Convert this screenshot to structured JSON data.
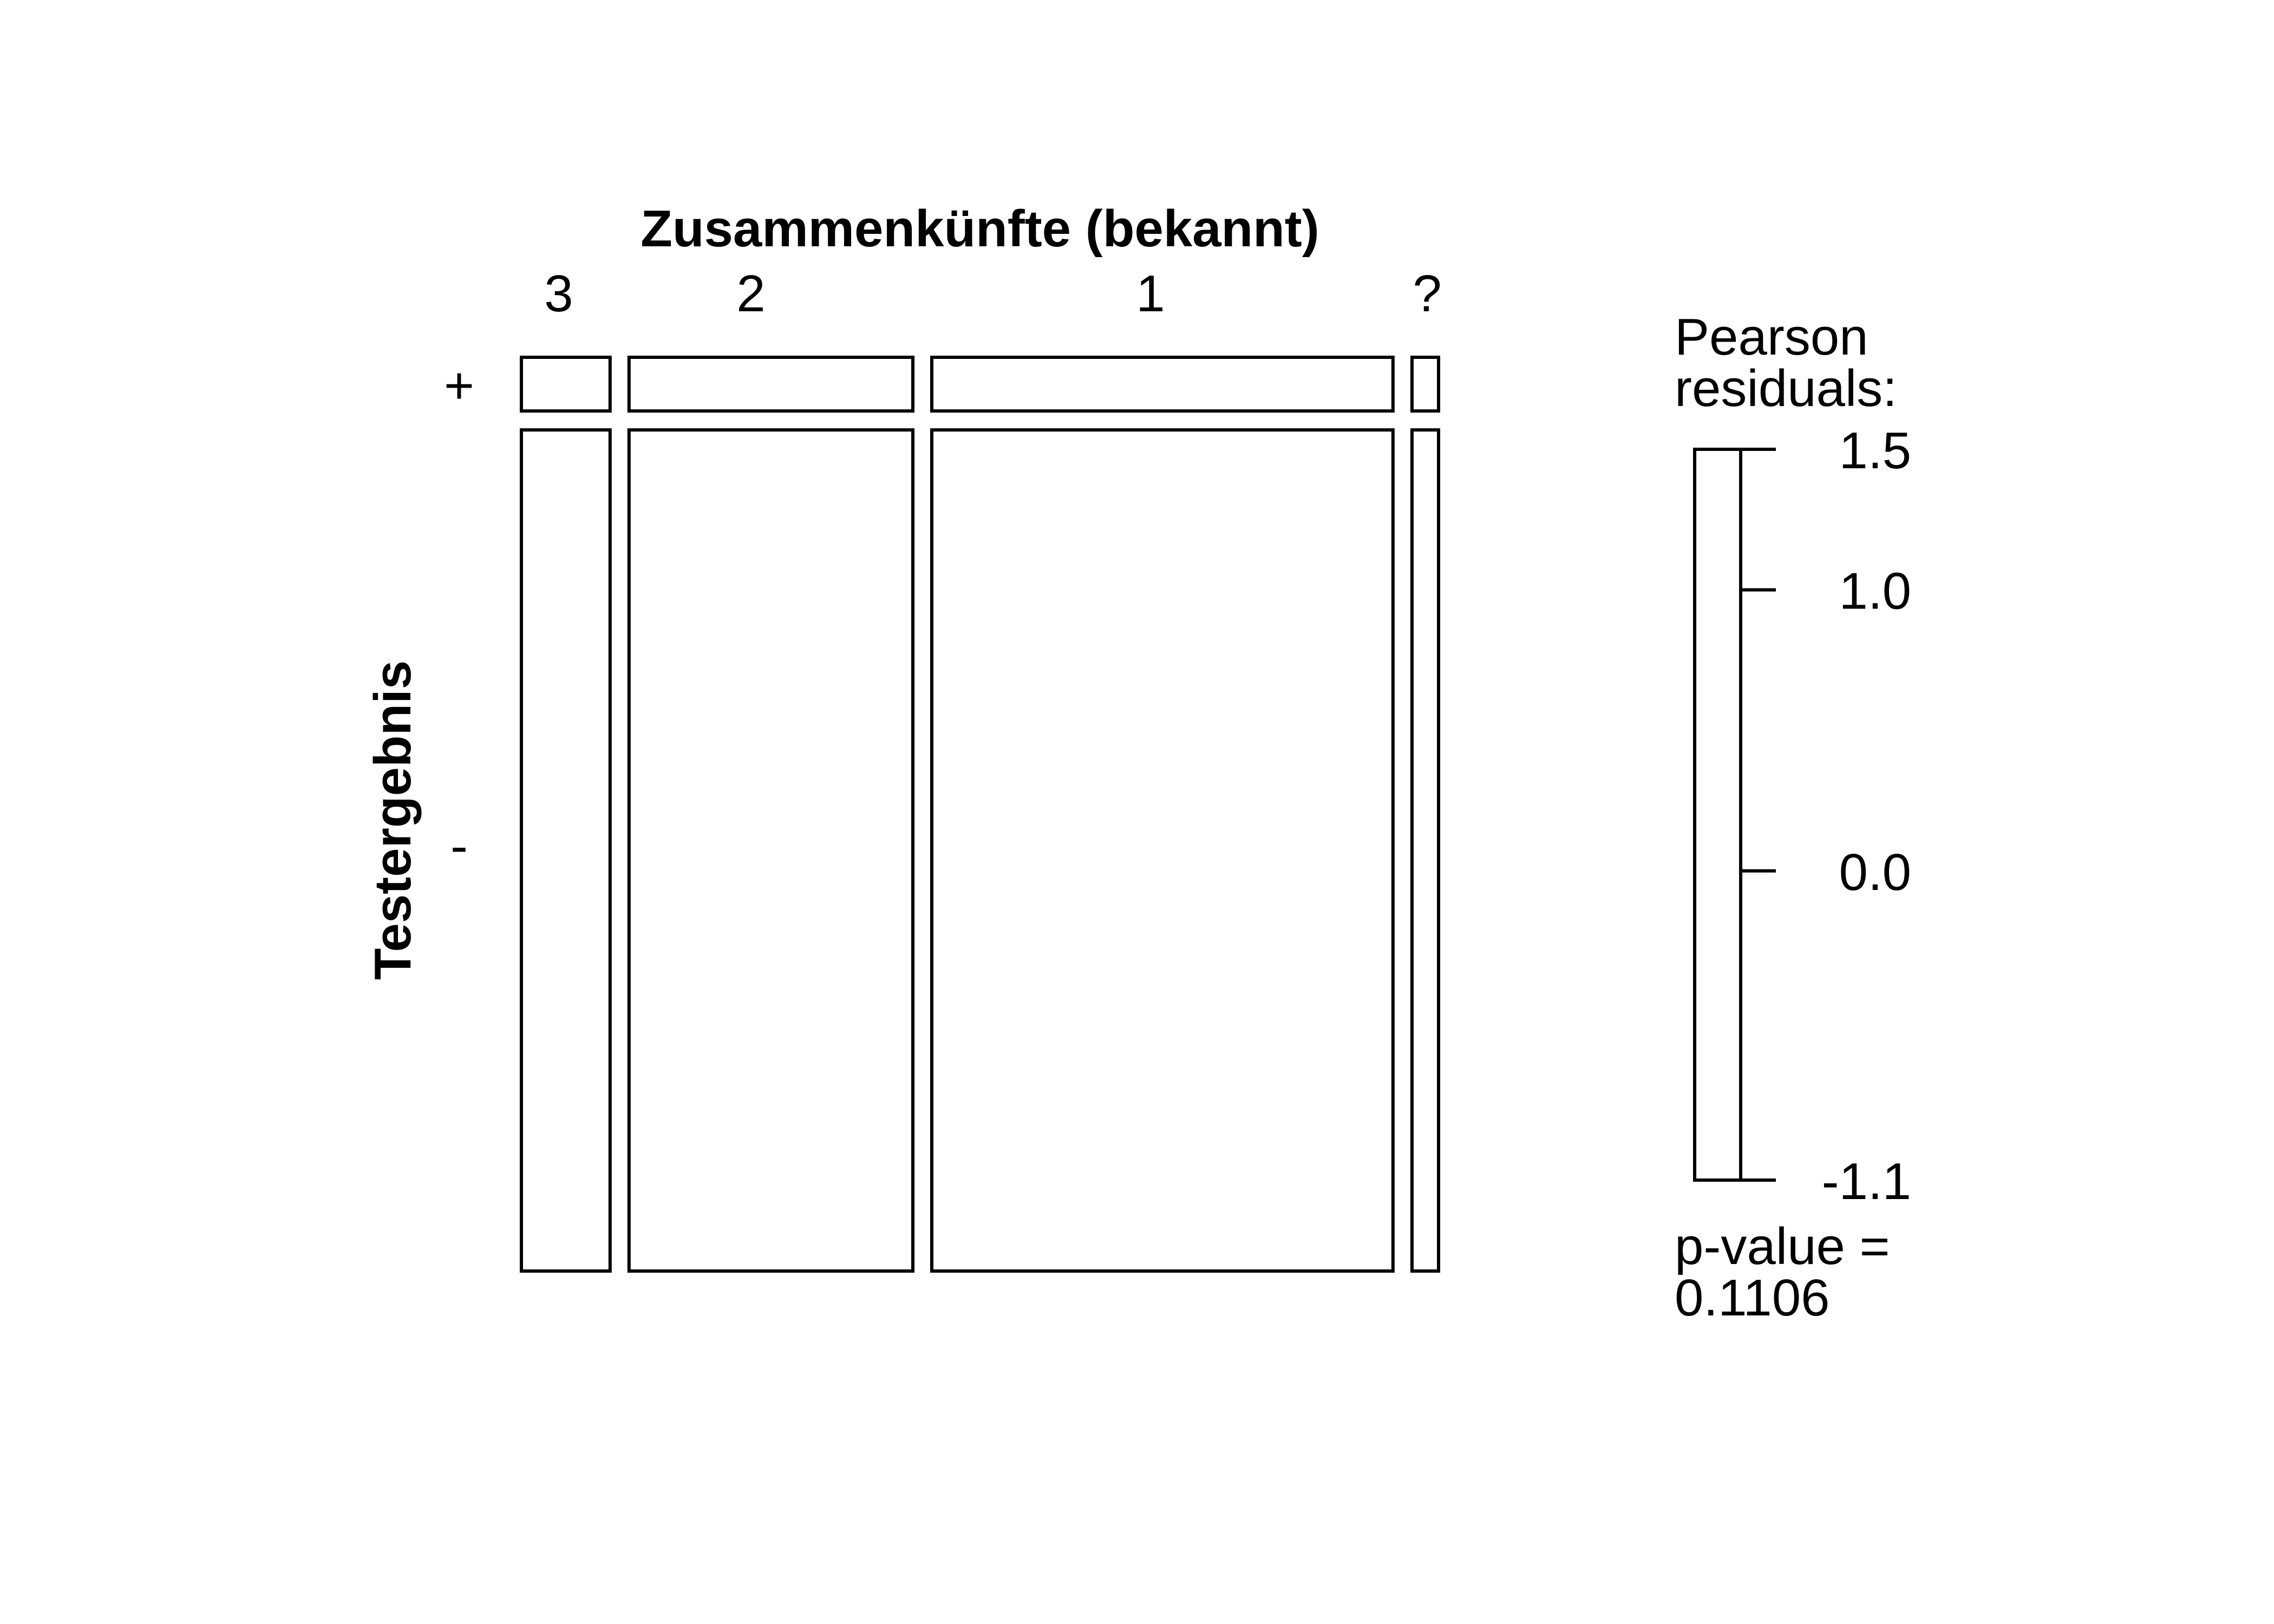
{
  "chart_data": {
    "type": "mosaic",
    "title": "Zusammenkünfte (bekannt)",
    "ylabel": "Testergebnis",
    "col_categories": [
      "3",
      "2",
      "1",
      "?"
    ],
    "row_categories": [
      "+",
      "-"
    ],
    "col_share": [
      0.1,
      0.32,
      0.52,
      0.03
    ],
    "row_share_by_col": {
      "3": [
        0.06,
        0.94
      ],
      "2": [
        0.06,
        0.94
      ],
      "1": [
        0.06,
        0.94
      ],
      "?": [
        0.06,
        0.94
      ]
    },
    "legend": {
      "title_line1": "Pearson",
      "title_line2": "residuals:",
      "ticks": [
        "1.5",
        "1.0",
        "0.0",
        "-1.1"
      ],
      "tick_values": [
        1.5,
        1.0,
        0.0,
        -1.1
      ],
      "range": [
        -1.1,
        1.5
      ]
    },
    "pvalue_line1": "p-value =",
    "pvalue_line2": "0.1106"
  }
}
